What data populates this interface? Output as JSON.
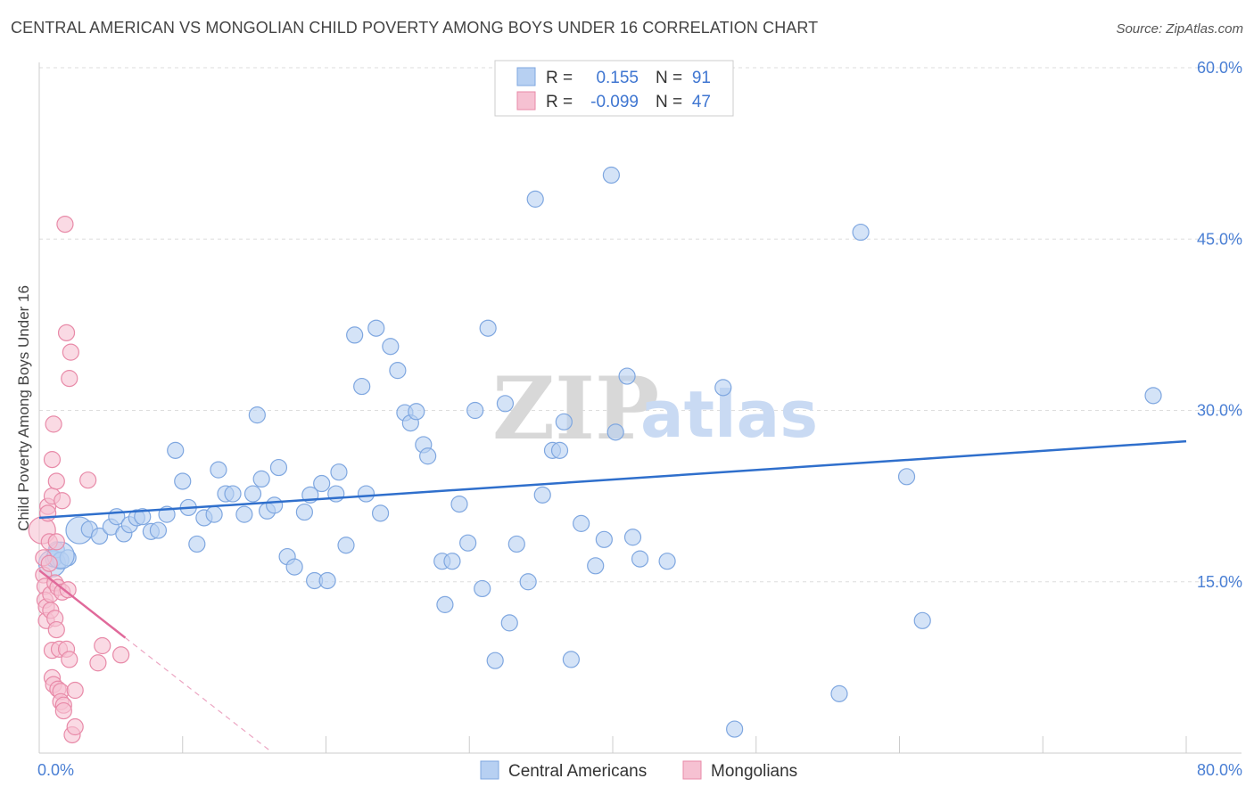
{
  "title": "CENTRAL AMERICAN VS MONGOLIAN CHILD POVERTY AMONG BOYS UNDER 16 CORRELATION CHART",
  "source": "Source: ZipAtlas.com",
  "watermark": {
    "zip": "ZIP",
    "atlas": "atlas"
  },
  "colors": {
    "blue_fill": "#b7d0f2",
    "blue_stroke": "#7fa7e0",
    "blue_line": "#2f6fcc",
    "pink_fill": "#f6c1d2",
    "pink_stroke": "#e88aa8",
    "pink_line": "#e0699a",
    "grid": "#dddddd",
    "axis_text": "#4a7fd4"
  },
  "legend": {
    "row1": {
      "r_label": "R =",
      "r_value": "0.155",
      "n_label": "N =",
      "n_value": "91"
    },
    "row2": {
      "r_label": "R =",
      "r_value": "-0.099",
      "n_label": "N =",
      "n_value": "47"
    }
  },
  "bottom_legend": {
    "series1": "Central Americans",
    "series2": "Mongolians"
  },
  "chart_data": {
    "type": "scatter",
    "title": "CENTRAL AMERICAN VS MONGOLIAN CHILD POVERTY AMONG BOYS UNDER 16 CORRELATION CHART",
    "xlabel": "",
    "ylabel": "Child Poverty Among Boys Under 16",
    "xlim": [
      0,
      80
    ],
    "ylim": [
      0,
      60
    ],
    "x_tick_labels": [
      "0.0%",
      "80.0%"
    ],
    "y_ticks": [
      15,
      30,
      45,
      60
    ],
    "y_tick_labels": [
      "15.0%",
      "30.0%",
      "45.0%",
      "60.0%"
    ],
    "series": [
      {
        "name": "Central Americans",
        "r": 0.155,
        "n": 91,
        "trend": {
          "x": [
            0,
            80
          ],
          "y": [
            20.6,
            27.3
          ]
        },
        "points": [
          [
            0.9,
            16.6
          ],
          [
            1.0,
            17.0
          ],
          [
            1.2,
            17.8
          ],
          [
            1.5,
            16.9
          ],
          [
            2.0,
            17.1
          ],
          [
            2.8,
            19.5
          ],
          [
            3.5,
            19.6
          ],
          [
            4.2,
            19.0
          ],
          [
            5.0,
            19.8
          ],
          [
            5.4,
            20.7
          ],
          [
            5.9,
            19.2
          ],
          [
            6.3,
            20.0
          ],
          [
            6.8,
            20.6
          ],
          [
            7.2,
            20.7
          ],
          [
            7.8,
            19.4
          ],
          [
            8.3,
            19.5
          ],
          [
            8.9,
            20.9
          ],
          [
            9.5,
            26.5
          ],
          [
            10.0,
            23.8
          ],
          [
            10.4,
            21.5
          ],
          [
            11.0,
            18.3
          ],
          [
            11.5,
            20.6
          ],
          [
            12.2,
            20.9
          ],
          [
            12.5,
            24.8
          ],
          [
            13.0,
            22.7
          ],
          [
            13.5,
            22.7
          ],
          [
            14.3,
            20.9
          ],
          [
            14.9,
            22.7
          ],
          [
            15.2,
            29.6
          ],
          [
            15.5,
            24.0
          ],
          [
            15.9,
            21.2
          ],
          [
            16.4,
            21.7
          ],
          [
            16.7,
            25.0
          ],
          [
            17.3,
            17.2
          ],
          [
            17.8,
            16.3
          ],
          [
            18.5,
            21.1
          ],
          [
            18.9,
            22.6
          ],
          [
            19.2,
            15.1
          ],
          [
            19.7,
            23.6
          ],
          [
            20.1,
            15.1
          ],
          [
            20.7,
            22.7
          ],
          [
            20.9,
            24.6
          ],
          [
            21.4,
            18.2
          ],
          [
            22.0,
            36.6
          ],
          [
            22.5,
            32.1
          ],
          [
            22.8,
            22.7
          ],
          [
            23.5,
            37.2
          ],
          [
            23.8,
            21.0
          ],
          [
            24.5,
            35.6
          ],
          [
            25.0,
            33.5
          ],
          [
            25.5,
            29.8
          ],
          [
            25.9,
            28.9
          ],
          [
            26.3,
            29.9
          ],
          [
            26.8,
            27.0
          ],
          [
            27.1,
            26.0
          ],
          [
            28.1,
            16.8
          ],
          [
            28.3,
            13.0
          ],
          [
            28.8,
            16.8
          ],
          [
            29.3,
            21.8
          ],
          [
            29.9,
            18.4
          ],
          [
            30.4,
            30.0
          ],
          [
            30.9,
            14.4
          ],
          [
            31.3,
            37.2
          ],
          [
            31.8,
            8.1
          ],
          [
            32.5,
            30.6
          ],
          [
            32.8,
            11.4
          ],
          [
            33.3,
            18.3
          ],
          [
            34.1,
            15.0
          ],
          [
            34.6,
            48.5
          ],
          [
            35.1,
            22.6
          ],
          [
            35.8,
            26.5
          ],
          [
            36.3,
            26.5
          ],
          [
            36.6,
            29.0
          ],
          [
            37.1,
            8.2
          ],
          [
            37.8,
            20.1
          ],
          [
            38.8,
            16.4
          ],
          [
            39.4,
            18.7
          ],
          [
            39.9,
            50.6
          ],
          [
            40.2,
            28.1
          ],
          [
            41.0,
            33.0
          ],
          [
            41.4,
            18.9
          ],
          [
            41.9,
            17.0
          ],
          [
            43.8,
            16.8
          ],
          [
            47.7,
            32.0
          ],
          [
            48.5,
            2.1
          ],
          [
            55.8,
            5.2
          ],
          [
            57.3,
            45.6
          ],
          [
            60.5,
            24.2
          ],
          [
            61.6,
            11.6
          ],
          [
            77.7,
            31.3
          ],
          [
            1.5,
            17.3
          ]
        ]
      },
      {
        "name": "Mongolians",
        "r": -0.099,
        "n": 47,
        "trend": {
          "x": [
            0,
            6.0
          ],
          "y": [
            16.0,
            10.1
          ]
        },
        "trend_dashed": {
          "x": [
            6.0,
            16.0
          ],
          "y": [
            10.1,
            0.3
          ]
        },
        "points": [
          [
            0.2,
            19.5
          ],
          [
            0.3,
            17.1
          ],
          [
            0.3,
            15.6
          ],
          [
            0.4,
            14.6
          ],
          [
            0.4,
            13.4
          ],
          [
            0.5,
            12.8
          ],
          [
            0.5,
            11.6
          ],
          [
            0.6,
            21.6
          ],
          [
            0.6,
            21.0
          ],
          [
            0.7,
            18.5
          ],
          [
            0.7,
            16.6
          ],
          [
            0.8,
            13.9
          ],
          [
            0.8,
            12.5
          ],
          [
            0.9,
            25.7
          ],
          [
            0.9,
            22.5
          ],
          [
            0.9,
            9.0
          ],
          [
            0.9,
            6.6
          ],
          [
            1.0,
            28.8
          ],
          [
            1.0,
            6.0
          ],
          [
            1.1,
            14.9
          ],
          [
            1.1,
            11.8
          ],
          [
            1.2,
            10.8
          ],
          [
            1.2,
            23.8
          ],
          [
            1.2,
            18.5
          ],
          [
            1.3,
            14.5
          ],
          [
            1.3,
            5.6
          ],
          [
            1.4,
            9.1
          ],
          [
            1.5,
            5.4
          ],
          [
            1.5,
            4.5
          ],
          [
            1.6,
            22.1
          ],
          [
            1.6,
            14.1
          ],
          [
            1.7,
            4.2
          ],
          [
            1.7,
            3.7
          ],
          [
            1.8,
            46.3
          ],
          [
            1.9,
            36.8
          ],
          [
            1.9,
            9.1
          ],
          [
            2.0,
            14.3
          ],
          [
            2.1,
            8.2
          ],
          [
            2.1,
            32.8
          ],
          [
            2.2,
            35.1
          ],
          [
            2.3,
            1.6
          ],
          [
            2.5,
            5.5
          ],
          [
            2.5,
            2.3
          ],
          [
            3.4,
            23.9
          ],
          [
            4.1,
            7.9
          ],
          [
            4.4,
            9.4
          ],
          [
            5.7,
            8.6
          ]
        ]
      }
    ]
  }
}
